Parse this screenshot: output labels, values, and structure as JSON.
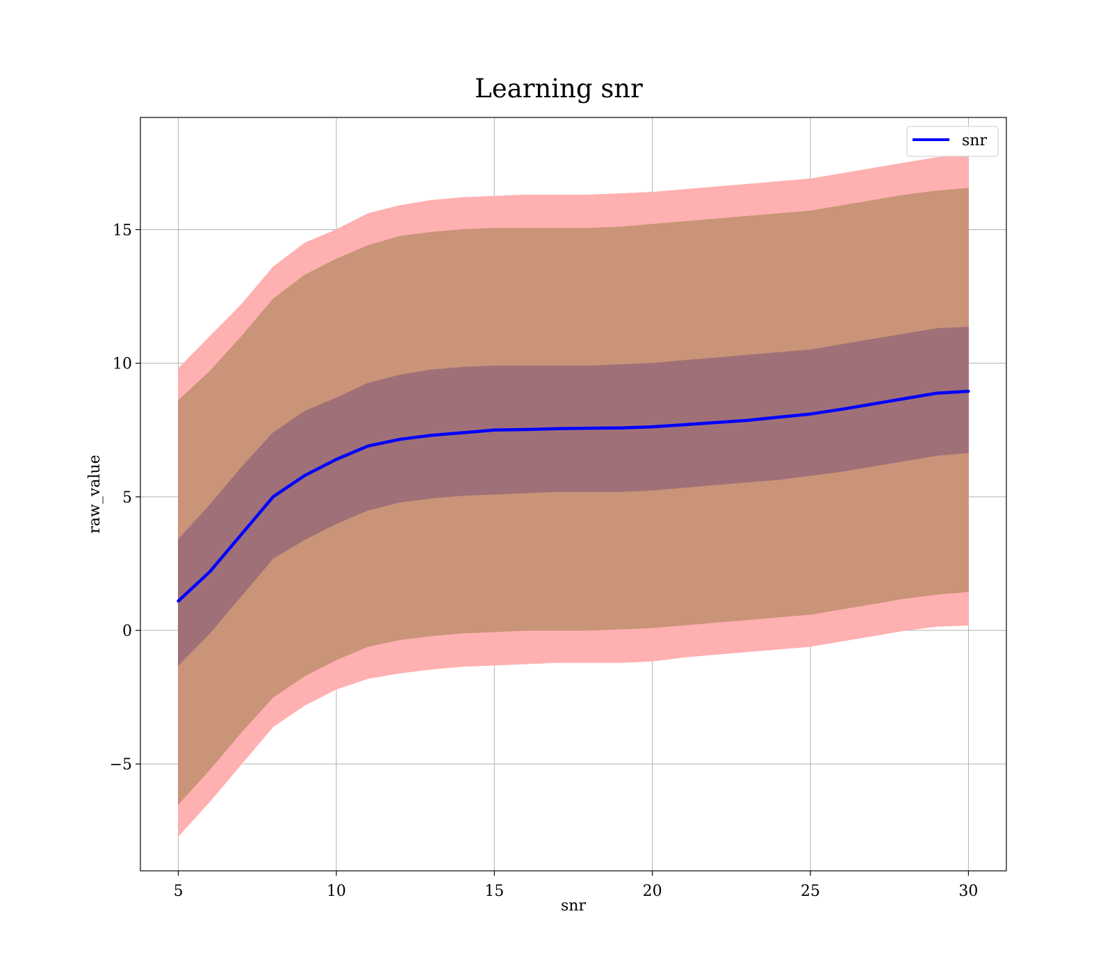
{
  "chart_data": {
    "type": "area",
    "title": "Learning snr",
    "xlabel": "snr",
    "ylabel": "raw_value",
    "xlim": [
      3.8,
      31.2
    ],
    "ylim": [
      -9.0,
      19.2
    ],
    "xticks": [
      5,
      10,
      15,
      20,
      25,
      30
    ],
    "yticks": [
      -5,
      0,
      5,
      10,
      15
    ],
    "ytick_labels": [
      "−5",
      "0",
      "5",
      "10",
      "15"
    ],
    "grid": true,
    "legend_position": "top-right",
    "x": [
      5,
      6,
      7,
      8,
      9,
      10,
      11,
      12,
      13,
      14,
      15,
      16,
      17,
      18,
      19,
      20,
      21,
      22,
      23,
      24,
      25,
      26,
      27,
      28,
      29,
      30
    ],
    "series": [
      {
        "name": "snr",
        "color": "#0000ff",
        "values": [
          1.1,
          2.2,
          3.6,
          5.0,
          5.8,
          6.4,
          6.9,
          7.15,
          7.3,
          7.4,
          7.5,
          7.52,
          7.55,
          7.57,
          7.58,
          7.62,
          7.7,
          7.78,
          7.86,
          7.98,
          8.1,
          8.28,
          8.48,
          8.68,
          8.88,
          8.95
        ]
      }
    ],
    "bands": [
      {
        "level": "outer",
        "color": "#ffb0b0",
        "lower": [
          -7.7,
          -6.4,
          -5.0,
          -3.6,
          -2.8,
          -2.2,
          -1.8,
          -1.6,
          -1.45,
          -1.35,
          -1.3,
          -1.25,
          -1.2,
          -1.2,
          -1.2,
          -1.15,
          -1.0,
          -0.9,
          -0.8,
          -0.7,
          -0.6,
          -0.4,
          -0.2,
          0.0,
          0.15,
          0.2
        ],
        "upper": [
          9.8,
          11.0,
          12.2,
          13.6,
          14.5,
          15.0,
          15.6,
          15.9,
          16.1,
          16.2,
          16.25,
          16.3,
          16.3,
          16.3,
          16.35,
          16.4,
          16.5,
          16.6,
          16.7,
          16.8,
          16.9,
          17.1,
          17.3,
          17.5,
          17.7,
          17.8
        ]
      },
      {
        "level": "middle",
        "color": "#c99478",
        "lower": [
          -6.5,
          -5.2,
          -3.8,
          -2.5,
          -1.7,
          -1.1,
          -0.6,
          -0.35,
          -0.2,
          -0.1,
          -0.05,
          0.0,
          0.0,
          0.0,
          0.05,
          0.1,
          0.2,
          0.3,
          0.4,
          0.5,
          0.6,
          0.8,
          1.0,
          1.2,
          1.35,
          1.45
        ],
        "upper": [
          8.6,
          9.7,
          11.0,
          12.4,
          13.3,
          13.9,
          14.4,
          14.75,
          14.9,
          15.0,
          15.05,
          15.05,
          15.05,
          15.05,
          15.1,
          15.2,
          15.3,
          15.4,
          15.5,
          15.6,
          15.7,
          15.9,
          16.1,
          16.3,
          16.45,
          16.55
        ]
      },
      {
        "level": "inner",
        "color": "#a07078",
        "lower": [
          -1.3,
          -0.1,
          1.3,
          2.7,
          3.4,
          4.0,
          4.5,
          4.8,
          4.95,
          5.05,
          5.1,
          5.15,
          5.2,
          5.2,
          5.2,
          5.25,
          5.35,
          5.45,
          5.55,
          5.65,
          5.8,
          5.95,
          6.15,
          6.35,
          6.55,
          6.65
        ],
        "upper": [
          3.4,
          4.7,
          6.1,
          7.4,
          8.2,
          8.7,
          9.25,
          9.55,
          9.75,
          9.85,
          9.9,
          9.9,
          9.9,
          9.9,
          9.95,
          10.0,
          10.1,
          10.2,
          10.3,
          10.4,
          10.5,
          10.7,
          10.9,
          11.1,
          11.3,
          11.35
        ]
      }
    ]
  }
}
